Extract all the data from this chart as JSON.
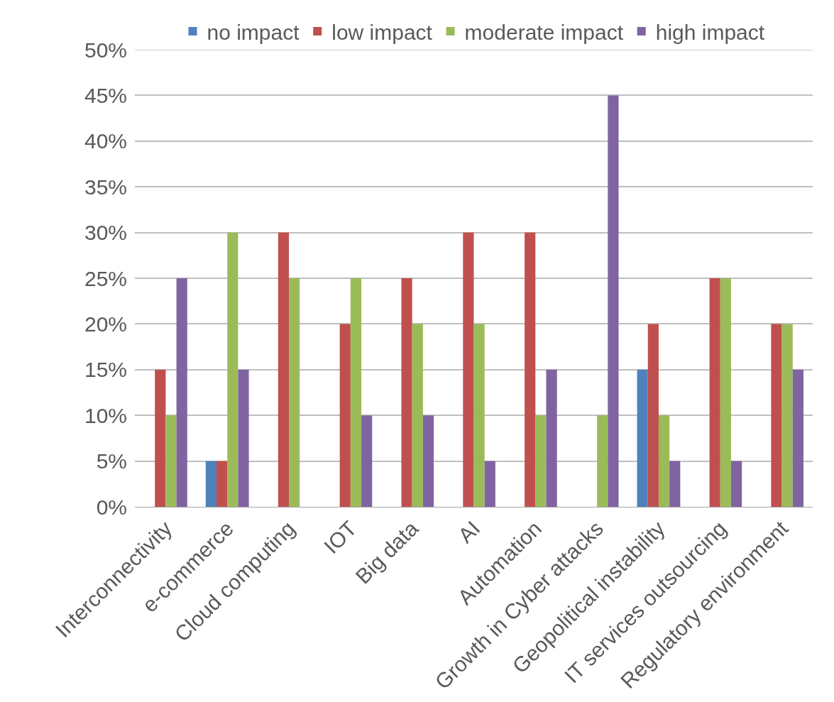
{
  "chart_data": {
    "type": "bar",
    "categories": [
      "Interconnectivity",
      "e-commerce",
      "Cloud computing",
      "IOT",
      "Big data",
      "AI",
      "Automation",
      "Growth in Cyber attacks",
      "Geopolitical instability",
      "IT services outsourcing",
      "Regulatory environment"
    ],
    "series": [
      {
        "name": "no impact",
        "color": "#4f81bd",
        "values": [
          0,
          5,
          0,
          0,
          0,
          0,
          0,
          0,
          15,
          0,
          0
        ]
      },
      {
        "name": "low impact",
        "color": "#c0504d",
        "values": [
          15,
          5,
          30,
          20,
          25,
          30,
          30,
          0,
          20,
          25,
          20
        ]
      },
      {
        "name": "moderate impact",
        "color": "#9bbb59",
        "values": [
          10,
          30,
          25,
          25,
          20,
          20,
          10,
          10,
          10,
          25,
          20
        ]
      },
      {
        "name": "high impact",
        "color": "#8064a2",
        "values": [
          25,
          15,
          0,
          10,
          10,
          5,
          15,
          45,
          5,
          5,
          15
        ]
      }
    ],
    "ylim": [
      0,
      50
    ],
    "yticks": [
      {
        "value": 0,
        "label": "0%"
      },
      {
        "value": 5,
        "label": "5%"
      },
      {
        "value": 10,
        "label": "10%"
      },
      {
        "value": 15,
        "label": "15%"
      },
      {
        "value": 20,
        "label": "20%"
      },
      {
        "value": 25,
        "label": "25%"
      },
      {
        "value": 30,
        "label": "30%"
      },
      {
        "value": 35,
        "label": "35%"
      },
      {
        "value": 40,
        "label": "40%"
      },
      {
        "value": 45,
        "label": "45%"
      },
      {
        "value": 50,
        "label": "50%"
      }
    ],
    "grid": "y",
    "legend": "top"
  }
}
